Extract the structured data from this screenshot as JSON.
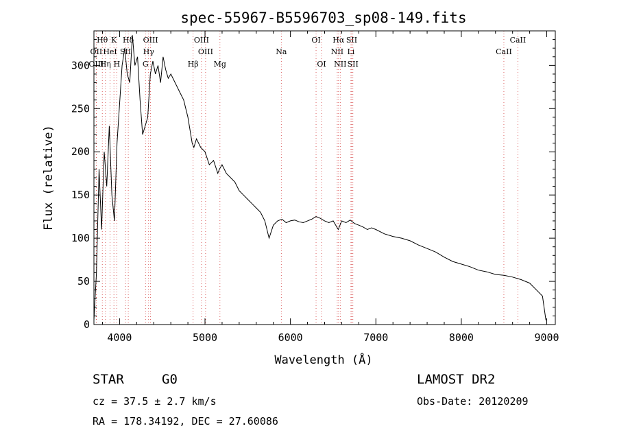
{
  "chart_data": {
    "type": "line",
    "title": "spec-55967-B5596703_sp08-149.fits",
    "xlabel": "Wavelength (Å)",
    "ylabel": "Flux (relative)",
    "xlim": [
      3700,
      9100
    ],
    "ylim": [
      0,
      340
    ],
    "xticks": [
      4000,
      5000,
      6000,
      7000,
      8000,
      9000
    ],
    "yticks": [
      0,
      50,
      100,
      150,
      200,
      250,
      300
    ],
    "grid": false,
    "series": [
      {
        "x": [
          3700,
          3730,
          3760,
          3790,
          3820,
          3850,
          3880,
          3910,
          3940,
          3970,
          4000,
          4030,
          4060,
          4090,
          4120,
          4150,
          4180,
          4210,
          4240,
          4270,
          4300,
          4330,
          4360,
          4390,
          4420,
          4450,
          4480,
          4510,
          4540,
          4570,
          4600,
          4650,
          4700,
          4750,
          4800,
          4850,
          4870,
          4900,
          4950,
          5000,
          5050,
          5100,
          5150,
          5170,
          5200,
          5250,
          5300,
          5350,
          5400,
          5450,
          5500,
          5550,
          5600,
          5650,
          5700,
          5750,
          5800,
          5850,
          5900,
          5950,
          6000,
          6050,
          6100,
          6150,
          6200,
          6250,
          6300,
          6350,
          6400,
          6450,
          6500,
          6560,
          6600,
          6650,
          6700,
          6750,
          6800,
          6850,
          6900,
          6950,
          7000,
          7100,
          7200,
          7300,
          7400,
          7500,
          7600,
          7700,
          7800,
          7900,
          8000,
          8100,
          8200,
          8300,
          8400,
          8500,
          8600,
          8700,
          8800,
          8900,
          8950,
          8990
        ],
        "y": [
          5,
          60,
          180,
          110,
          200,
          160,
          230,
          150,
          120,
          210,
          255,
          300,
          320,
          290,
          280,
          335,
          300,
          310,
          260,
          220,
          230,
          240,
          290,
          305,
          290,
          300,
          280,
          310,
          295,
          285,
          290,
          280,
          270,
          260,
          240,
          210,
          205,
          215,
          205,
          200,
          185,
          190,
          175,
          180,
          185,
          175,
          170,
          165,
          155,
          150,
          145,
          140,
          135,
          130,
          120,
          100,
          115,
          120,
          122,
          118,
          120,
          121,
          119,
          118,
          120,
          122,
          125,
          123,
          120,
          118,
          120,
          110,
          120,
          118,
          121,
          117,
          115,
          113,
          110,
          112,
          110,
          105,
          102,
          100,
          97,
          92,
          88,
          84,
          78,
          73,
          70,
          67,
          63,
          61,
          58,
          57,
          55,
          52,
          48,
          38,
          33,
          5
        ]
      }
    ],
    "lines": [
      {
        "label": "Hθ",
        "x": 3798,
        "row": 1
      },
      {
        "label": "K",
        "x": 3934,
        "row": 1
      },
      {
        "label": "Hδ",
        "x": 4102,
        "row": 1
      },
      {
        "label": "OIII",
        "x": 4363,
        "row": 1
      },
      {
        "label": "OIII",
        "x": 4959,
        "row": 1
      },
      {
        "label": "OI",
        "x": 6300,
        "row": 1
      },
      {
        "label": "Hα",
        "x": 6563,
        "row": 1
      },
      {
        "label": "SII",
        "x": 6717,
        "row": 1
      },
      {
        "label": "CaII",
        "x": 8662,
        "row": 1
      },
      {
        "label": "OII",
        "x": 3727,
        "row": 2
      },
      {
        "label": "HeI",
        "x": 3889,
        "row": 2
      },
      {
        "label": "SII",
        "x": 4070,
        "row": 2
      },
      {
        "label": "Hγ",
        "x": 4340,
        "row": 2
      },
      {
        "label": "OIII",
        "x": 5007,
        "row": 2
      },
      {
        "label": "Na",
        "x": 5893,
        "row": 2
      },
      {
        "label": "NII",
        "x": 6548,
        "row": 2
      },
      {
        "label": "Li",
        "x": 6708,
        "row": 2
      },
      {
        "label": "CaII",
        "x": 8498,
        "row": 2
      },
      {
        "label": "OIII",
        "x": 3727,
        "row": 3
      },
      {
        "label": "Hη",
        "x": 3835,
        "row": 3
      },
      {
        "label": "H",
        "x": 3968,
        "row": 3
      },
      {
        "label": "G",
        "x": 4304,
        "row": 3
      },
      {
        "label": "Hβ",
        "x": 4861,
        "row": 3
      },
      {
        "label": "Mg",
        "x": 5175,
        "row": 3
      },
      {
        "label": "OI",
        "x": 6364,
        "row": 3
      },
      {
        "label": "NII",
        "x": 6583,
        "row": 3
      },
      {
        "label": "SII",
        "x": 6731,
        "row": 3
      }
    ]
  },
  "info": {
    "object_class": "STAR",
    "subclass": "G0",
    "survey": "LAMOST DR2",
    "redshift": "cz = 37.5 ± 2.7 km/s",
    "obs_date": "Obs-Date: 20120209",
    "coords": "RA = 178.34192, DEC =  27.60086"
  }
}
